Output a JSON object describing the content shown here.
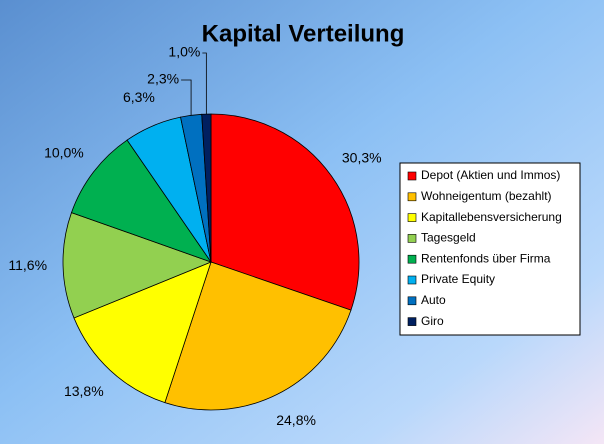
{
  "chart_data": {
    "type": "pie",
    "title": "Kapital Verteilung",
    "categories": [
      "Depot (Aktien und Immos)",
      "Wohneigentum (bezahlt)",
      "Kapitallebensversicherung",
      "Tagesgeld",
      "Rentenfonds über Firma",
      "Private Equity",
      "Auto",
      "Giro"
    ],
    "values": [
      30.3,
      24.8,
      13.8,
      11.6,
      10.0,
      6.3,
      2.3,
      1.0
    ],
    "value_labels": [
      "30,3%",
      "24,8%",
      "13,8%",
      "11,6%",
      "10,0%",
      "6,3%",
      "2,3%",
      "1,0%"
    ],
    "colors": [
      "#ff0000",
      "#ffc000",
      "#ffff00",
      "#92d050",
      "#00b050",
      "#00b0f0",
      "#0070c0",
      "#002060"
    ],
    "legend": "right"
  }
}
